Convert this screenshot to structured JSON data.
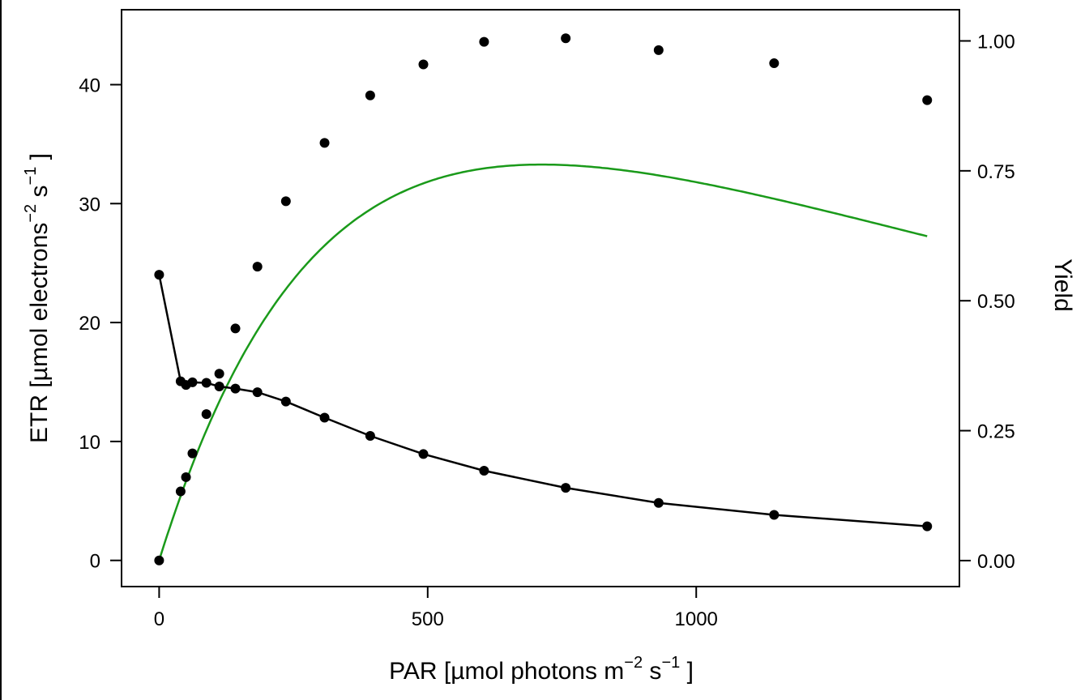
{
  "chart_data": {
    "type": "line",
    "xlabel": {
      "prefix": "PAR [",
      "mu": "µ",
      "mid": "mol photons m",
      "exp1": "−2",
      "sp": " s",
      "exp2": "−1",
      "suffix": " ]"
    },
    "ylabel_left": {
      "prefix": "ETR [",
      "mu": "µ",
      "mid": "mol electrons",
      "exp1": "−2",
      "sp": " s",
      "exp2": "−1",
      "suffix": " ]"
    },
    "ylabel_right": "Yield",
    "xlim": [
      -70,
      1490
    ],
    "ylim_left": [
      -2.2,
      46.3
    ],
    "ylim_right": [
      -0.05,
      1.06
    ],
    "x_ticks": [
      0,
      500,
      1000
    ],
    "y_left_ticks": [
      0,
      10,
      20,
      30,
      40
    ],
    "y_right_ticks": [
      "0.00",
      "0.25",
      "0.50",
      "0.75",
      "1.00"
    ],
    "series": [
      {
        "axis": "left",
        "color": "#000000",
        "x": [
          0,
          40,
          50,
          62,
          88,
          112,
          142,
          183,
          236,
          308,
          393,
          492,
          605,
          757,
          930,
          1145,
          1430
        ],
        "values": [
          0,
          5.8,
          7.0,
          9.0,
          12.3,
          15.7,
          19.5,
          24.7,
          30.2,
          35.1,
          39.1,
          41.7,
          43.6,
          43.9,
          42.9,
          41.8,
          38.7
        ]
      },
      {
        "axis": "right",
        "color": "#000000",
        "x": [
          0,
          40,
          50,
          62,
          88,
          112,
          142,
          183,
          236,
          308,
          393,
          492,
          605,
          757,
          930,
          1145,
          1430
        ],
        "values": [
          0.55,
          0.345,
          0.338,
          0.343,
          0.342,
          0.335,
          0.331,
          0.324,
          0.306,
          0.275,
          0.24,
          0.205,
          0.173,
          0.14,
          0.111,
          0.088,
          0.066
        ]
      },
      {
        "axis": "left",
        "type": "fit-curve",
        "color": "#1a9a1a",
        "model": "Platt",
        "params": {
          "ps": 55.35,
          "alpha": 0.1452,
          "beta": 0.0265
        },
        "x_range": [
          0,
          1430
        ]
      }
    ]
  }
}
